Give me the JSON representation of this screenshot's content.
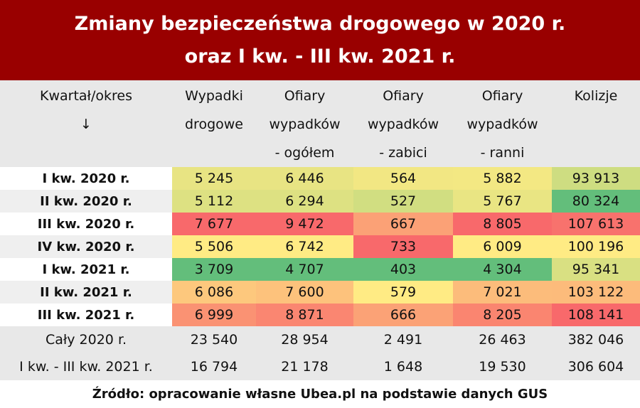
{
  "title": {
    "line1": "Zmiany bezpieczeństwa drogowego w 2020 r.",
    "line2": "oraz I kw. - III kw. 2021 r."
  },
  "colors": {
    "title_bg": "#990000",
    "low": "#63be7b",
    "mid": "#ffeb84",
    "high": "#f8696b"
  },
  "chart_data": {
    "type": "heatmap",
    "title": "Zmiany bezpieczeństwa drogowego w 2020 r. oraz I kw. - III kw. 2021 r.",
    "row_header": [
      "Kwartał/okres",
      "↓"
    ],
    "columns": [
      [
        "Wypadki",
        "drogowe"
      ],
      [
        "Ofiary",
        "wypadków",
        "- ogółem"
      ],
      [
        "Ofiary",
        "wypadków",
        "- zabici"
      ],
      [
        "Ofiary",
        "wypadków",
        "- ranni"
      ],
      [
        "Kolizje"
      ]
    ],
    "color_scale": "per-column green (low) – yellow – red (high)",
    "rows": [
      {
        "label": "I kw. 2020 r.",
        "values": [
          5245,
          6446,
          564,
          5882,
          93913
        ],
        "display": [
          "5 245",
          "6 446",
          "564",
          "5 882",
          "93 913"
        ]
      },
      {
        "label": "II kw. 2020 r.",
        "values": [
          5112,
          6294,
          527,
          5767,
          80324
        ],
        "display": [
          "5 112",
          "6 294",
          "527",
          "5 767",
          "80 324"
        ]
      },
      {
        "label": "III kw. 2020 r.",
        "values": [
          7677,
          9472,
          667,
          8805,
          107613
        ],
        "display": [
          "7 677",
          "9 472",
          "667",
          "8 805",
          "107 613"
        ]
      },
      {
        "label": "IV kw. 2020 r.",
        "values": [
          5506,
          6742,
          733,
          6009,
          100196
        ],
        "display": [
          "5 506",
          "6 742",
          "733",
          "6 009",
          "100 196"
        ]
      },
      {
        "label": "I kw. 2021 r.",
        "values": [
          3709,
          4707,
          403,
          4304,
          95341
        ],
        "display": [
          "3 709",
          "4 707",
          "403",
          "4 304",
          "95 341"
        ]
      },
      {
        "label": "II kw. 2021 r.",
        "values": [
          6086,
          7600,
          579,
          7021,
          103122
        ],
        "display": [
          "6 086",
          "7 600",
          "579",
          "7 021",
          "103 122"
        ]
      },
      {
        "label": "III kw. 2021 r.",
        "values": [
          6999,
          8871,
          666,
          8205,
          108141
        ],
        "display": [
          "6 999",
          "8 871",
          "666",
          "8 205",
          "108 141"
        ]
      }
    ],
    "totals": [
      {
        "label": "Cały 2020 r.",
        "values": [
          23540,
          28954,
          2491,
          26463,
          382046
        ],
        "display": [
          "23 540",
          "28 954",
          "2 491",
          "26 463",
          "382 046"
        ]
      },
      {
        "label": "I kw. - III kw. 2021 r.",
        "values": [
          16794,
          21178,
          1648,
          19530,
          306604
        ],
        "display": [
          "16 794",
          "21 178",
          "1 648",
          "19 530",
          "306 604"
        ]
      }
    ]
  },
  "source": "Źródło: opracowanie własne Ubea.pl na podstawie danych GUS"
}
